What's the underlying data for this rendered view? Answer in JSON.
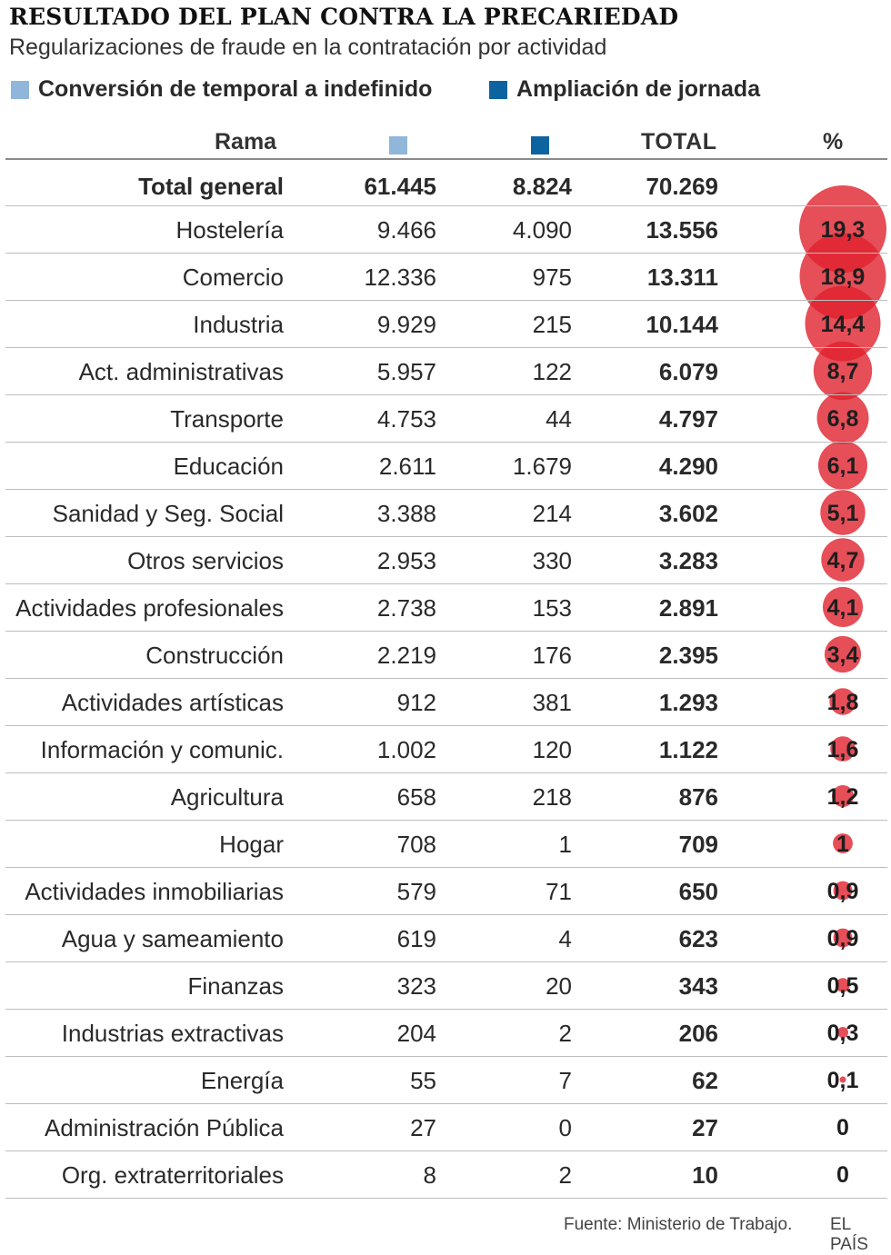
{
  "header": {
    "title": "RESULTADO DEL PLAN CONTRA LA PRECARIEDAD",
    "subtitle": "Regularizaciones de fraude en la contratación por actividad"
  },
  "legend": {
    "conversion_label": "Conversión de temporal a indefinido",
    "ampliacion_label": "Ampliación de jornada"
  },
  "colors": {
    "conversion": "#90b6d9",
    "ampliacion": "#0d63a0",
    "bubble": "#e0222e"
  },
  "table_header": {
    "rama": "Rama",
    "total": "TOTAL",
    "pct": "%"
  },
  "chart_data": {
    "type": "table",
    "columns": [
      "Rama",
      "Conversión de temporal a indefinido",
      "Ampliación de jornada",
      "TOTAL",
      "%"
    ],
    "total_row": {
      "rama": "Total general",
      "conversion": "61.445",
      "ampliacion": "8.824",
      "total": "70.269"
    },
    "rows": [
      {
        "rama": "Hostelería",
        "conversion": "9.466",
        "ampliacion": "4.090",
        "total": "13.556",
        "pct": "19,3",
        "pct_value": 19.3
      },
      {
        "rama": "Comercio",
        "conversion": "12.336",
        "ampliacion": "975",
        "total": "13.311",
        "pct": "18,9",
        "pct_value": 18.9
      },
      {
        "rama": "Industria",
        "conversion": "9.929",
        "ampliacion": "215",
        "total": "10.144",
        "pct": "14,4",
        "pct_value": 14.4
      },
      {
        "rama": "Act. administrativas",
        "conversion": "5.957",
        "ampliacion": "122",
        "total": "6.079",
        "pct": "8,7",
        "pct_value": 8.7
      },
      {
        "rama": "Transporte",
        "conversion": "4.753",
        "ampliacion": "44",
        "total": "4.797",
        "pct": "6,8",
        "pct_value": 6.8
      },
      {
        "rama": "Educación",
        "conversion": "2.611",
        "ampliacion": "1.679",
        "total": "4.290",
        "pct": "6,1",
        "pct_value": 6.1
      },
      {
        "rama": "Sanidad y Seg. Social",
        "conversion": "3.388",
        "ampliacion": "214",
        "total": "3.602",
        "pct": "5,1",
        "pct_value": 5.1
      },
      {
        "rama": "Otros servicios",
        "conversion": "2.953",
        "ampliacion": "330",
        "total": "3.283",
        "pct": "4,7",
        "pct_value": 4.7
      },
      {
        "rama": "Actividades profesionales",
        "conversion": "2.738",
        "ampliacion": "153",
        "total": "2.891",
        "pct": "4,1",
        "pct_value": 4.1
      },
      {
        "rama": "Construcción",
        "conversion": "2.219",
        "ampliacion": "176",
        "total": "2.395",
        "pct": "3,4",
        "pct_value": 3.4
      },
      {
        "rama": "Actividades artísticas",
        "conversion": "912",
        "ampliacion": "381",
        "total": "1.293",
        "pct": "1,8",
        "pct_value": 1.8
      },
      {
        "rama": "Información y comunic.",
        "conversion": "1.002",
        "ampliacion": "120",
        "total": "1.122",
        "pct": "1,6",
        "pct_value": 1.6
      },
      {
        "rama": "Agricultura",
        "conversion": "658",
        "ampliacion": "218",
        "total": "876",
        "pct": "1,2",
        "pct_value": 1.2
      },
      {
        "rama": "Hogar",
        "conversion": "708",
        "ampliacion": "1",
        "total": "709",
        "pct": "1",
        "pct_value": 1.0
      },
      {
        "rama": "Actividades inmobiliarias",
        "conversion": "579",
        "ampliacion": "71",
        "total": "650",
        "pct": "0,9",
        "pct_value": 0.9
      },
      {
        "rama": "Agua y sameamiento",
        "conversion": "619",
        "ampliacion": "4",
        "total": "623",
        "pct": "0,9",
        "pct_value": 0.9
      },
      {
        "rama": "Finanzas",
        "conversion": "323",
        "ampliacion": "20",
        "total": "343",
        "pct": "0,5",
        "pct_value": 0.5
      },
      {
        "rama": "Industrias extractivas",
        "conversion": "204",
        "ampliacion": "2",
        "total": "206",
        "pct": "0,3",
        "pct_value": 0.3
      },
      {
        "rama": "Energía",
        "conversion": "55",
        "ampliacion": "7",
        "total": "62",
        "pct": "0,1",
        "pct_value": 0.1
      },
      {
        "rama": "Administración Pública",
        "conversion": "27",
        "ampliacion": "0",
        "total": "27",
        "pct": "0",
        "pct_value": 0
      },
      {
        "rama": "Org. extraterritoriales",
        "conversion": "8",
        "ampliacion": "2",
        "total": "10",
        "pct": "0",
        "pct_value": 0
      }
    ]
  },
  "footer": {
    "source": "Fuente: Ministerio de Trabajo.",
    "brand": "EL PAÍS"
  }
}
